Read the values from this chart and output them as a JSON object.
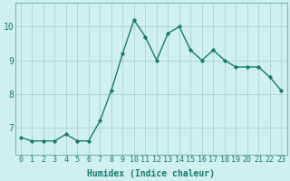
{
  "x": [
    0,
    1,
    2,
    3,
    4,
    5,
    6,
    7,
    8,
    9,
    10,
    11,
    12,
    13,
    14,
    15,
    16,
    17,
    18,
    19,
    20,
    21,
    22,
    23
  ],
  "y": [
    6.7,
    6.6,
    6.6,
    6.6,
    6.8,
    6.6,
    6.6,
    7.2,
    8.1,
    9.2,
    10.2,
    9.7,
    9.0,
    9.8,
    10.0,
    9.3,
    9.0,
    9.3,
    9.0,
    8.8,
    8.8,
    8.8,
    8.5,
    8.1
  ],
  "line_color": "#1a7a6e",
  "marker": "D",
  "markersize": 2.2,
  "linewidth": 1.0,
  "bg_color": "#cff0ec",
  "grid_color": "#b0d8d4",
  "xlabel": "Humidex (Indice chaleur)",
  "xlabel_fontsize": 7,
  "tick_fontsize": 6,
  "ylim": [
    6.2,
    10.7
  ],
  "yticks": [
    7,
    8,
    9,
    10
  ],
  "xlim": [
    -0.5,
    23.5
  ],
  "xticks": [
    0,
    1,
    2,
    3,
    4,
    5,
    6,
    7,
    8,
    9,
    10,
    11,
    12,
    13,
    14,
    15,
    16,
    17,
    18,
    19,
    20,
    21,
    22,
    23
  ]
}
